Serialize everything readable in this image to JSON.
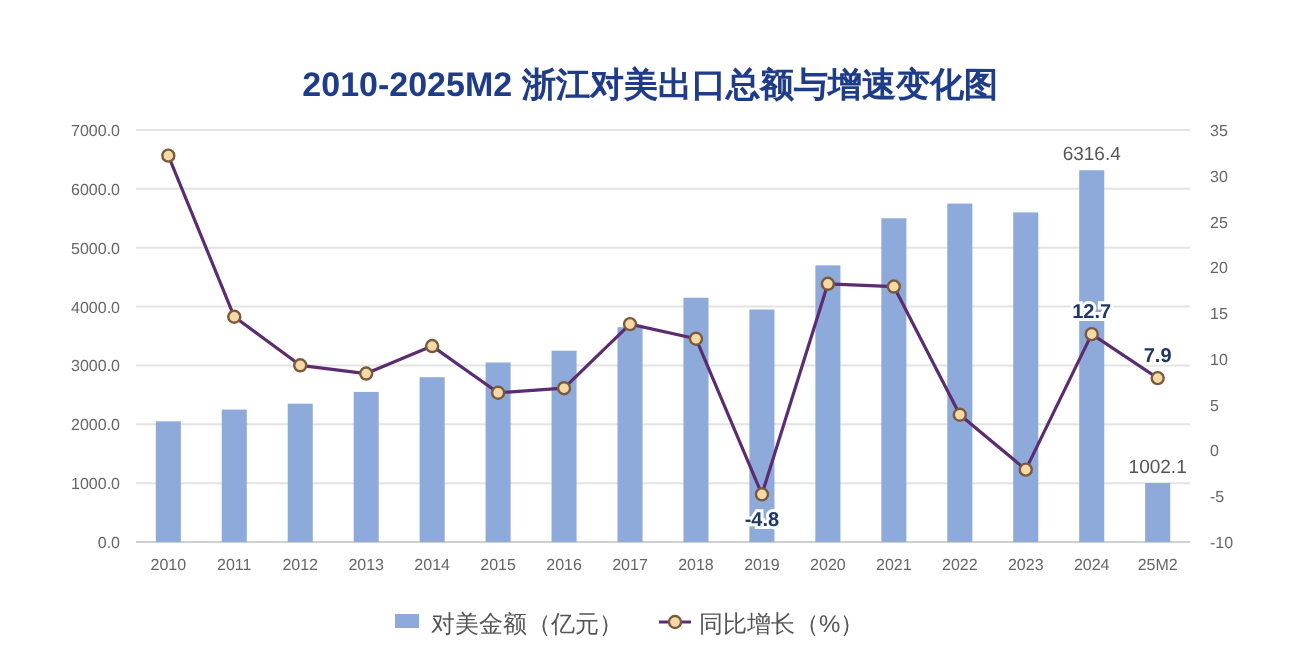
{
  "chart_data": {
    "type": "bar",
    "title": "2010-2025M2 浙江对美出口总额与增速变化图",
    "categories": [
      "2010",
      "2011",
      "2012",
      "2013",
      "2014",
      "2015",
      "2016",
      "2017",
      "2018",
      "2019",
      "2020",
      "2021",
      "2022",
      "2023",
      "2024",
      "25M2"
    ],
    "series": [
      {
        "name": "对美金额（亿元）",
        "color": "#8eaadb",
        "values": [
          2050,
          2250,
          2350,
          2550,
          2800,
          3050,
          3250,
          3650,
          4150,
          3950,
          4700,
          5500,
          5750,
          5600,
          6316.4,
          1002.1
        ],
        "value_labels": [
          null,
          null,
          null,
          null,
          null,
          null,
          null,
          null,
          null,
          null,
          null,
          null,
          null,
          null,
          "6316.4",
          "1002.1"
        ]
      },
      {
        "name": "同比增长（%）",
        "type": "line",
        "axis": "y2",
        "color": "#5b2c6f",
        "values": [
          32.2,
          14.6,
          9.3,
          8.4,
          11.4,
          6.3,
          6.8,
          13.8,
          12.2,
          -4.8,
          18.2,
          17.9,
          3.9,
          -2.1,
          12.7,
          7.9
        ],
        "value_labels": [
          null,
          null,
          null,
          null,
          null,
          null,
          null,
          null,
          null,
          "-4.8",
          null,
          null,
          null,
          null,
          "12.7",
          "7.9"
        ]
      }
    ],
    "ylim": [
      0,
      7000
    ],
    "yticks": [
      {
        "value": 0,
        "label": "0.0"
      },
      {
        "value": 1000,
        "label": "1000.0"
      },
      {
        "value": 2000,
        "label": "2000.0"
      },
      {
        "value": 3000,
        "label": "3000.0"
      },
      {
        "value": 4000,
        "label": "4000.0"
      },
      {
        "value": 5000,
        "label": "5000.0"
      },
      {
        "value": 6000,
        "label": "6000.0"
      },
      {
        "value": 7000,
        "label": "7000.0"
      }
    ],
    "y2lim": [
      -10,
      35
    ],
    "y2ticks": [
      -10,
      -5,
      0,
      5,
      10,
      15,
      20,
      25,
      30,
      35
    ],
    "grid": "y",
    "legend": "bottom",
    "marker": "circle",
    "line_style": "solid"
  }
}
